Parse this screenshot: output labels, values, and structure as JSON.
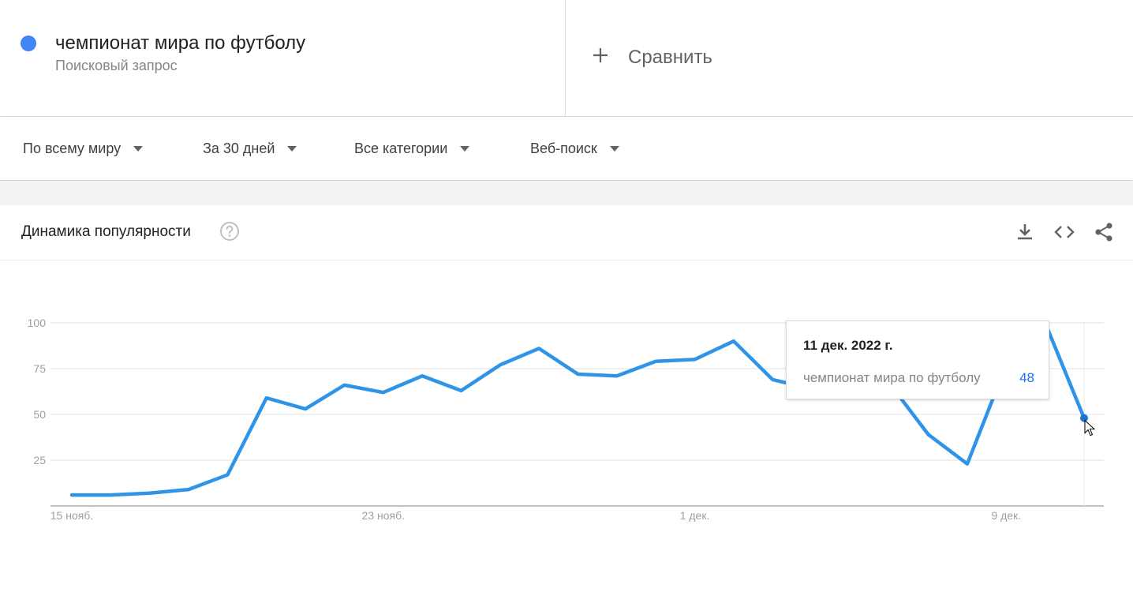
{
  "term": {
    "title": "чемпионат мира по футболу",
    "subtitle": "Поисковый запрос",
    "color": "#4285f4"
  },
  "compare": {
    "label": "Сравнить"
  },
  "filters": [
    {
      "label": "По всему миру"
    },
    {
      "label": "За 30 дней"
    },
    {
      "label": "Все категории"
    },
    {
      "label": "Веб-поиск"
    }
  ],
  "card": {
    "title": "Динамика популярности",
    "icons": [
      "help-icon",
      "download-icon",
      "embed-code-icon",
      "share-icon"
    ]
  },
  "tooltip": {
    "date": "11 дек. 2022 г.",
    "series_name": "чемпионат мира по футболу",
    "value": "48"
  },
  "chart_data": {
    "type": "line",
    "x": [
      "2022-11-15",
      "2022-11-16",
      "2022-11-17",
      "2022-11-18",
      "2022-11-19",
      "2022-11-20",
      "2022-11-21",
      "2022-11-22",
      "2022-11-23",
      "2022-11-24",
      "2022-11-25",
      "2022-11-26",
      "2022-11-27",
      "2022-11-28",
      "2022-11-29",
      "2022-11-30",
      "2022-12-01",
      "2022-12-02",
      "2022-12-03",
      "2022-12-04",
      "2022-12-05",
      "2022-12-06",
      "2022-12-07",
      "2022-12-08",
      "2022-12-09",
      "2022-12-10",
      "2022-12-11"
    ],
    "series": [
      {
        "name": "чемпионат мира по футболу",
        "color": "#2f94e8",
        "values": [
          6,
          6,
          7,
          9,
          17,
          59,
          53,
          66,
          62,
          71,
          63,
          77,
          86,
          72,
          71,
          79,
          80,
          90,
          69,
          64,
          61,
          67,
          39,
          23,
          77,
          100,
          48
        ]
      }
    ],
    "yticks": [
      "25",
      "50",
      "75",
      "100"
    ],
    "ytick_values": [
      25,
      50,
      75,
      100
    ],
    "xticks": [
      {
        "label": "15 нояб.",
        "date": "2022-11-15"
      },
      {
        "label": "23 нояб.",
        "date": "2022-11-23"
      },
      {
        "label": "1 дек.",
        "date": "2022-12-01"
      },
      {
        "label": "9 дек.",
        "date": "2022-12-09"
      }
    ],
    "ylim": [
      0,
      100
    ],
    "grid": true,
    "legend": "none",
    "highlighted_point": "2022-12-11"
  }
}
